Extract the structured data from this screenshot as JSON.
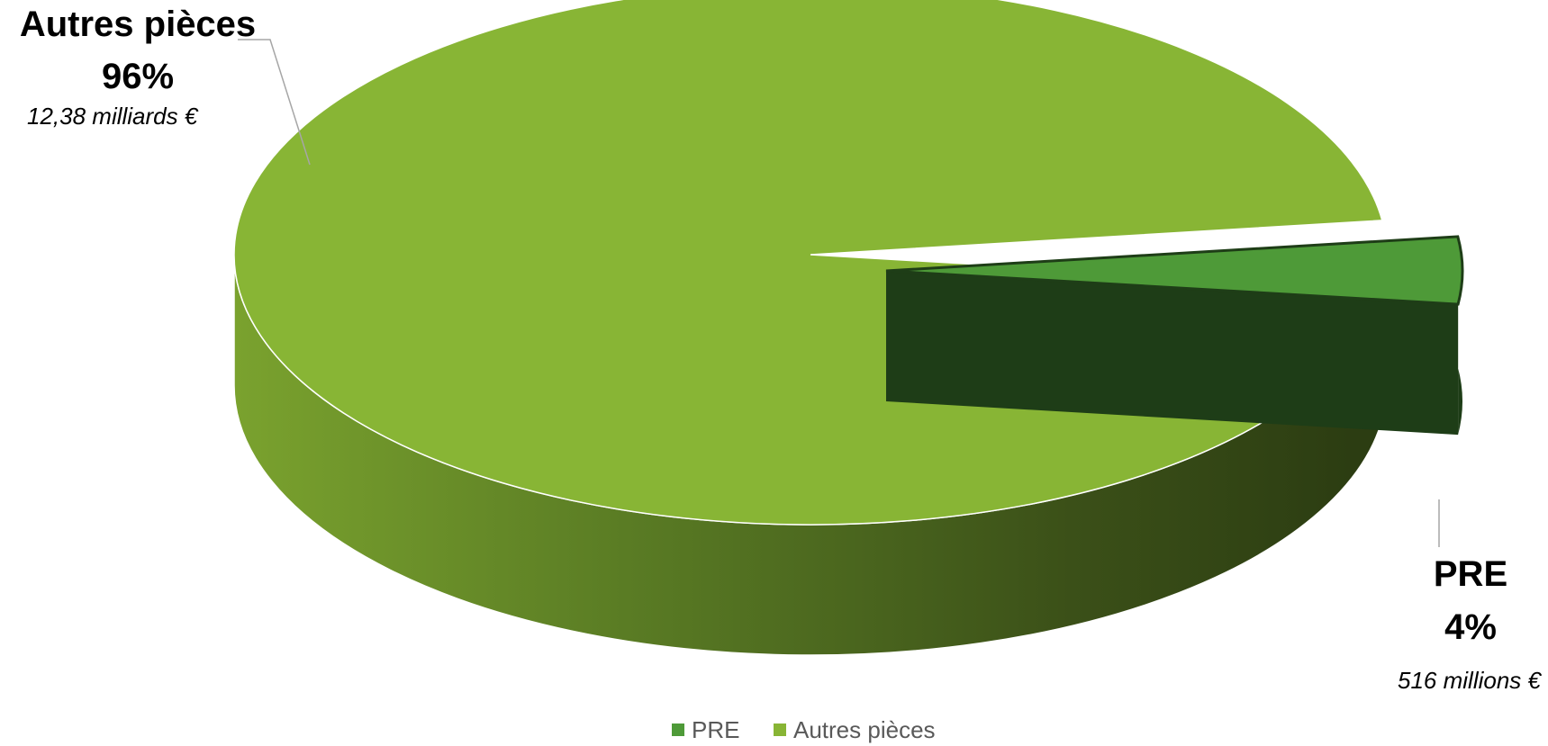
{
  "chart_data": {
    "type": "pie",
    "style": "3d-exploded",
    "slices": [
      {
        "name": "PRE",
        "percent": 4,
        "percent_label": "4%",
        "amount_label": "516 millions €",
        "color": "#4e9a38",
        "side_color": "#1e3d17",
        "exploded": true
      },
      {
        "name": "Autres pièces",
        "percent": 96,
        "percent_label": "96%",
        "amount_label": "12,38 milliards €",
        "color": "#88b535",
        "side_color": "#5f8128",
        "exploded": false
      }
    ],
    "legend": {
      "position": "bottom",
      "entries": [
        "PRE",
        "Autres pièces"
      ]
    }
  }
}
